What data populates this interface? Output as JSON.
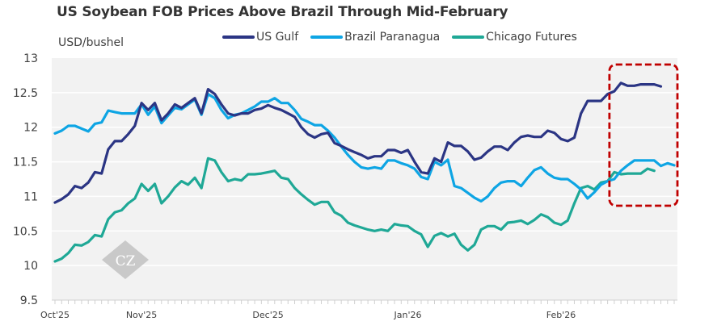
{
  "chart_data": {
    "type": "line",
    "title": "US Soybean FOB Prices Above Brazil Through Mid-February",
    "ylabel": "USD/bushel",
    "xlabel": "",
    "ylim": [
      9.5,
      13
    ],
    "yticks": [
      9.5,
      10,
      10.5,
      11,
      11.5,
      12,
      12.5,
      13
    ],
    "ytick_labels": [
      "9.5",
      "10",
      "10.5",
      "11",
      "11.5",
      "12",
      "12.5",
      "13"
    ],
    "xtick_labels": [
      {
        "label": "Oct'25",
        "index": 0
      },
      {
        "label": "Nov'25",
        "index": 13
      },
      {
        "label": "Dec'25",
        "index": 32
      },
      {
        "label": "Jan'26",
        "index": 53
      },
      {
        "label": "Feb'26",
        "index": 76
      }
    ],
    "grid": true,
    "legend_position": "top",
    "annotation": "dashed red rounded box highlighting mid-February",
    "highlight_range": [
      84,
      90
    ],
    "watermark": "CZ",
    "series": [
      {
        "name": "US Gulf",
        "color": "#2b3584",
        "values": [
          10.91,
          10.96,
          11.03,
          11.15,
          11.12,
          11.2,
          11.35,
          11.33,
          11.68,
          11.8,
          11.8,
          11.9,
          12.02,
          12.35,
          12.25,
          12.35,
          12.1,
          12.2,
          12.33,
          12.28,
          12.35,
          12.42,
          12.2,
          12.55,
          12.48,
          12.33,
          12.2,
          12.17,
          12.2,
          12.2,
          12.25,
          12.27,
          12.32,
          12.28,
          12.25,
          12.2,
          12.15,
          12.0,
          11.9,
          11.85,
          11.9,
          11.92,
          11.77,
          11.73,
          11.68,
          11.64,
          11.6,
          11.55,
          11.58,
          11.58,
          11.67,
          11.67,
          11.63,
          11.67,
          11.5,
          11.35,
          11.33,
          11.55,
          11.5,
          11.78,
          11.73,
          11.73,
          11.65,
          11.53,
          11.56,
          11.65,
          11.72,
          11.72,
          11.67,
          11.78,
          11.86,
          11.88,
          11.86,
          11.86,
          11.95,
          11.92,
          11.83,
          11.8,
          11.85,
          12.2,
          12.38,
          12.38,
          12.38,
          12.48,
          12.52,
          12.64,
          12.6,
          12.6,
          12.62,
          12.62,
          12.62,
          12.59
        ]
      },
      {
        "name": "Brazil Paranagua",
        "color": "#0ea5e4",
        "values": [
          11.91,
          11.95,
          12.02,
          12.02,
          11.98,
          11.94,
          12.05,
          12.07,
          12.24,
          12.22,
          12.2,
          12.2,
          12.2,
          12.33,
          12.18,
          12.3,
          12.06,
          12.17,
          12.28,
          12.26,
          12.33,
          12.4,
          12.18,
          12.48,
          12.42,
          12.25,
          12.13,
          12.18,
          12.2,
          12.25,
          12.3,
          12.37,
          12.37,
          12.42,
          12.35,
          12.35,
          12.25,
          12.12,
          12.08,
          12.03,
          12.03,
          11.95,
          11.85,
          11.72,
          11.6,
          11.5,
          11.42,
          11.4,
          11.42,
          11.4,
          11.52,
          11.52,
          11.48,
          11.45,
          11.4,
          11.28,
          11.25,
          11.5,
          11.45,
          11.53,
          11.15,
          11.12,
          11.05,
          10.98,
          10.93,
          11.0,
          11.12,
          11.2,
          11.22,
          11.22,
          11.15,
          11.27,
          11.38,
          11.42,
          11.33,
          11.27,
          11.25,
          11.25,
          11.18,
          11.1,
          10.97,
          11.06,
          11.17,
          11.22,
          11.25,
          11.37,
          11.45,
          11.52,
          11.52,
          11.52,
          11.52,
          11.44,
          11.48,
          11.45
        ]
      },
      {
        "name": "Chicago Futures",
        "color": "#1fa896",
        "values": [
          10.06,
          10.1,
          10.18,
          10.3,
          10.29,
          10.34,
          10.44,
          10.42,
          10.67,
          10.77,
          10.8,
          10.9,
          10.97,
          11.18,
          11.08,
          11.18,
          10.9,
          11.0,
          11.13,
          11.22,
          11.17,
          11.27,
          11.12,
          11.55,
          11.52,
          11.35,
          11.22,
          11.25,
          11.23,
          11.32,
          11.32,
          11.33,
          11.35,
          11.37,
          11.27,
          11.25,
          11.12,
          11.03,
          10.95,
          10.88,
          10.92,
          10.92,
          10.77,
          10.72,
          10.62,
          10.58,
          10.55,
          10.52,
          10.5,
          10.52,
          10.5,
          10.6,
          10.58,
          10.57,
          10.5,
          10.45,
          10.27,
          10.43,
          10.47,
          10.42,
          10.46,
          10.3,
          10.22,
          10.3,
          10.52,
          10.57,
          10.57,
          10.52,
          10.62,
          10.63,
          10.65,
          10.6,
          10.66,
          10.74,
          10.7,
          10.62,
          10.59,
          10.65,
          10.9,
          11.12,
          11.15,
          11.1,
          11.2,
          11.22,
          11.35,
          11.32,
          11.33,
          11.33,
          11.33,
          11.4,
          11.37
        ]
      }
    ]
  }
}
